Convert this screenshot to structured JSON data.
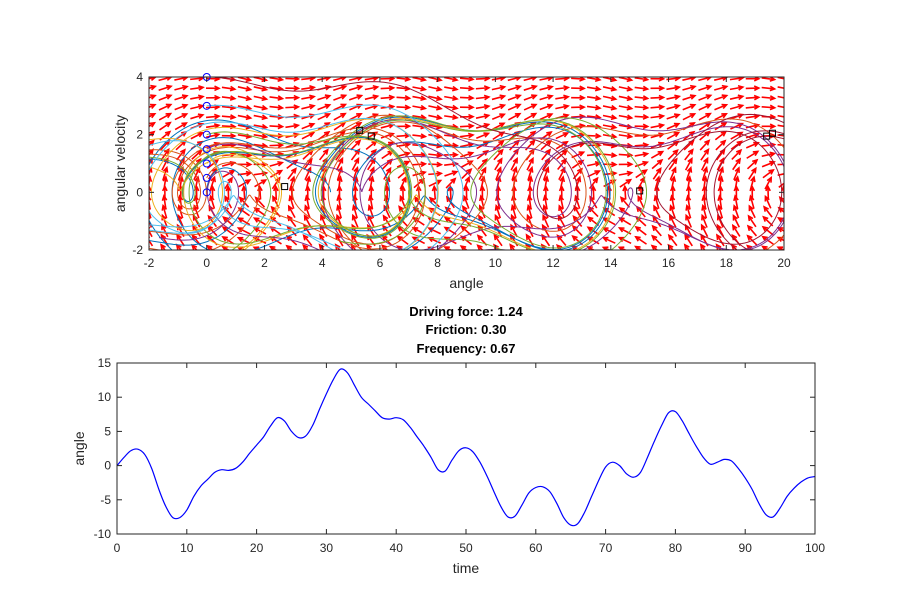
{
  "chart_data": [
    {
      "type": "quiver-phase-portrait",
      "xlabel": "angle",
      "ylabel": "angular velocity",
      "xlim": [
        -2,
        20
      ],
      "ylim": [
        -2,
        4
      ],
      "xticks": [
        -2,
        0,
        2,
        4,
        6,
        8,
        10,
        12,
        14,
        16,
        18,
        20
      ],
      "yticks": [
        -2,
        0,
        2,
        4
      ],
      "grid": false,
      "arrow_color": "#ff0000",
      "start_marker": "circle",
      "end_marker": "square",
      "trajectory_colors": [
        "#0072bd",
        "#d95319",
        "#edb120",
        "#7e2f8e",
        "#77ac30",
        "#4dbeee",
        "#a2142f"
      ],
      "start_points": [
        [
          0,
          0
        ],
        [
          0,
          0.5
        ],
        [
          0,
          1
        ],
        [
          0,
          1.5
        ],
        [
          0,
          2
        ],
        [
          0,
          3
        ],
        [
          0,
          4
        ]
      ],
      "end_points": [
        [
          2.7,
          0.2
        ],
        [
          5.3,
          2.15
        ],
        [
          5.7,
          1.95
        ],
        [
          15,
          0.05
        ],
        [
          19.4,
          1.95
        ],
        [
          19.6,
          2.05
        ]
      ]
    },
    {
      "type": "line",
      "title": [
        "Driving force: 1.24",
        "Friction: 0.30",
        "Frequency: 0.67"
      ],
      "xlabel": "time",
      "ylabel": "angle",
      "xlim": [
        0,
        100
      ],
      "ylim": [
        -10,
        15
      ],
      "xticks": [
        0,
        10,
        20,
        30,
        40,
        50,
        60,
        70,
        80,
        90,
        100
      ],
      "yticks": [
        -10,
        -5,
        0,
        5,
        10,
        15
      ],
      "grid": false,
      "line_color": "#0000ff",
      "series": [
        {
          "x": [
            0,
            1,
            2,
            3,
            4,
            5,
            6,
            7,
            8,
            9,
            10,
            11,
            12,
            13,
            14,
            15,
            16,
            17,
            18,
            19,
            20,
            21,
            22,
            23,
            24,
            25,
            26,
            27,
            28,
            29,
            30,
            31,
            32,
            33,
            34,
            35,
            36,
            37,
            38,
            39,
            40,
            41,
            42,
            43,
            44,
            45,
            46,
            47,
            48,
            49,
            50,
            51,
            52,
            53,
            54,
            55,
            56,
            57,
            58,
            59,
            60,
            61,
            62,
            63,
            64,
            65,
            66,
            67,
            68,
            69,
            70,
            71,
            72,
            73,
            74,
            75,
            76,
            77,
            78,
            79,
            80,
            81,
            82,
            83,
            84,
            85,
            86,
            87,
            88,
            89,
            90,
            91,
            92,
            93,
            94,
            95,
            96,
            97,
            98,
            99,
            100
          ],
          "y": [
            0,
            1.2,
            2.2,
            2.4,
            1.6,
            -0.5,
            -3.5,
            -6.0,
            -7.6,
            -7.6,
            -6.5,
            -4.5,
            -3.0,
            -2.0,
            -1.0,
            -0.6,
            -0.7,
            -0.4,
            0.5,
            1.8,
            3.0,
            4.2,
            5.8,
            7.0,
            6.5,
            5.0,
            4.1,
            4.3,
            5.8,
            8.2,
            10.5,
            12.6,
            14.1,
            13.6,
            11.8,
            10.0,
            9.0,
            8.0,
            7.0,
            6.8,
            7.0,
            6.7,
            5.6,
            4.2,
            2.8,
            1.2,
            -0.6,
            -0.8,
            0.8,
            2.2,
            2.6,
            2.0,
            0.5,
            -1.5,
            -3.8,
            -6.0,
            -7.5,
            -7.4,
            -5.8,
            -4.0,
            -3.2,
            -3.1,
            -3.8,
            -5.5,
            -7.6,
            -8.7,
            -8.5,
            -6.8,
            -4.5,
            -2.2,
            -0.2,
            0.5,
            0.0,
            -1.2,
            -1.7,
            -1.0,
            1.2,
            3.6,
            5.8,
            7.7,
            7.9,
            6.5,
            4.6,
            2.8,
            1.2,
            0.2,
            0.5,
            0.9,
            0.7,
            -0.4,
            -1.8,
            -3.5,
            -5.6,
            -7.2,
            -7.5,
            -6.2,
            -4.5,
            -3.3,
            -2.4,
            -1.8,
            -1.6
          ]
        }
      ]
    }
  ]
}
